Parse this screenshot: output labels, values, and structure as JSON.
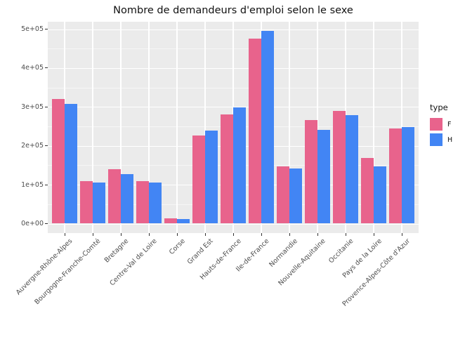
{
  "title": "Nombre de demandeurs d'emploi selon le sexe",
  "chart_data": {
    "type": "bar",
    "title": "Nombre de demandeurs d'emploi selon le sexe",
    "categories": [
      "Auvergne-Rhône-Alpes",
      "Bourgogne-Franche-Comté",
      "Bretagne",
      "Centre-Val de Loire",
      "Corse",
      "Grand Est",
      "Hauts-de-France",
      "Ile-de-France",
      "Normandie",
      "Nouvelle-Aquitaine",
      "Occitanie",
      "Pays de la Loire",
      "Provence-Alpes-Côte d'Azur"
    ],
    "series": [
      {
        "name": "F",
        "color": "#E8638C",
        "values": [
          320000,
          109000,
          140000,
          110000,
          14000,
          227000,
          280000,
          475000,
          147000,
          266000,
          289000,
          168000,
          245000
        ]
      },
      {
        "name": "H",
        "color": "#4285F4",
        "values": [
          307000,
          105000,
          127000,
          105000,
          12000,
          239000,
          299000,
          495000,
          142000,
          241000,
          279000,
          148000,
          248000
        ]
      }
    ],
    "xlabel": "",
    "ylabel": "",
    "ylim": [
      0,
      500000
    ],
    "y_ticks": [
      {
        "value": 0,
        "label": "0e+00"
      },
      {
        "value": 100000,
        "label": "1e+05"
      },
      {
        "value": 200000,
        "label": "2e+05"
      },
      {
        "value": 300000,
        "label": "3e+05"
      },
      {
        "value": 400000,
        "label": "4e+05"
      },
      {
        "value": 500000,
        "label": "5e+05"
      }
    ],
    "y_minor_ticks": [
      50000,
      150000,
      250000,
      350000,
      450000
    ],
    "grid": true,
    "legend_title": "type",
    "legend_position": "right",
    "panel_background": "#EBEBEB",
    "grid_color": "#FFFFFF",
    "axis_text_color": "#4D4D4D",
    "bar_layout": "dodge"
  }
}
